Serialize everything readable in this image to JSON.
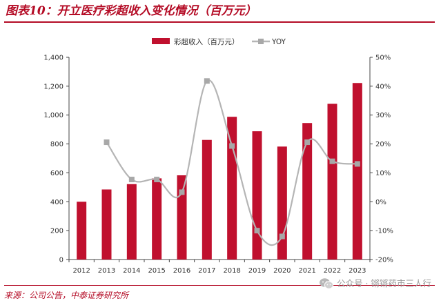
{
  "figure_title": "图表10：开立医疗彩超收入变化情况（百万元）",
  "source_note": "来源：公司公告，中泰证券研究所",
  "watermark": {
    "icon": "wechat-icon",
    "text": "公众号 · 锵锵药市三人行"
  },
  "colors": {
    "bar": "#c0102e",
    "line": "#b5b5b5",
    "marker": "#a8a8a8",
    "accent": "#b40b25"
  },
  "chart_data": {
    "type": "bar",
    "categories": [
      "2012",
      "2013",
      "2014",
      "2015",
      "2016",
      "2017",
      "2018",
      "2019",
      "2020",
      "2021",
      "2022",
      "2023"
    ],
    "series": [
      {
        "name": "彩超收入（百万元）",
        "type": "bar",
        "axis": "left",
        "values": [
          400,
          485,
          522,
          562,
          583,
          828,
          988,
          888,
          782,
          945,
          1078,
          1222
        ]
      },
      {
        "name": "YOY",
        "type": "line",
        "axis": "right",
        "values": [
          null,
          20.6,
          7.7,
          7.7,
          3.3,
          41.8,
          19.3,
          -10.0,
          -12.0,
          20.6,
          14.0,
          13.1
        ]
      }
    ],
    "y_left": {
      "ylim": [
        0,
        1400
      ],
      "ticks": [
        0,
        200,
        400,
        600,
        800,
        1000,
        1200,
        1400
      ],
      "tick_labels": [
        "0",
        "200",
        "400",
        "600",
        "800",
        "1,000",
        "1,200",
        "1,400"
      ]
    },
    "y_right": {
      "ylim": [
        -20,
        50
      ],
      "ticks": [
        -20,
        -10,
        0,
        10,
        20,
        30,
        40,
        50
      ],
      "tick_labels": [
        "-20%",
        "-10%",
        "0%",
        "10%",
        "20%",
        "30%",
        "40%",
        "50%"
      ]
    },
    "legend": {
      "position": "top-center",
      "entries": [
        "彩超收入（百万元）",
        "YOY"
      ]
    },
    "grid": false
  }
}
